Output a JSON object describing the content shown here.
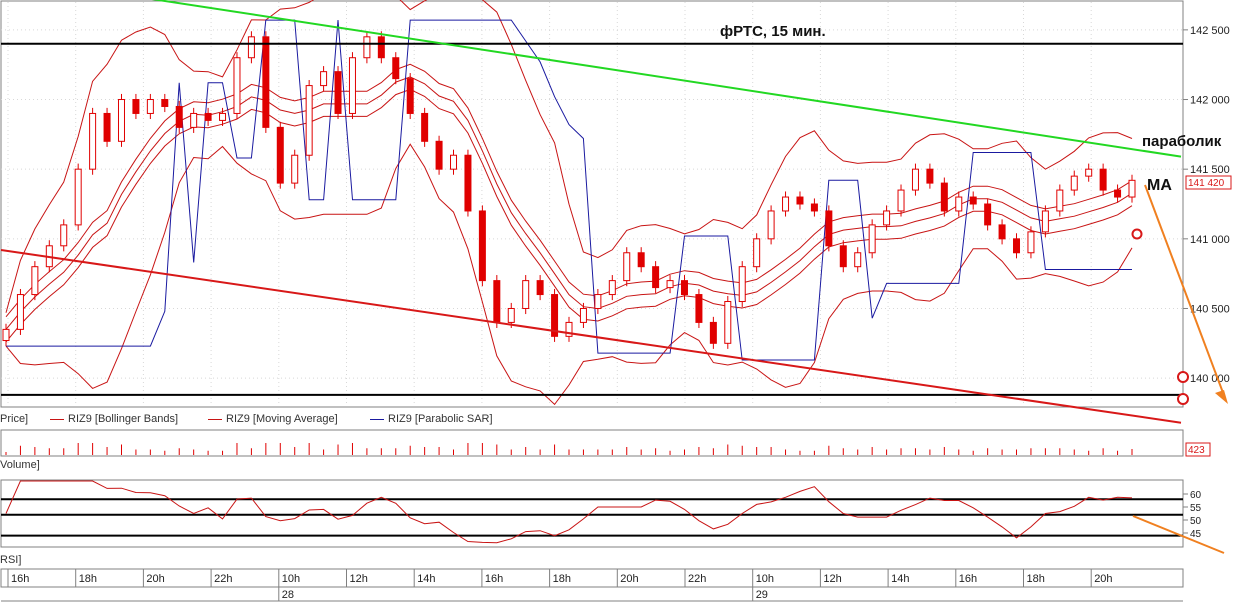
{
  "title": "фРТС,  15 мин.",
  "annotations": {
    "parabolic": "параболик",
    "ma": "MA"
  },
  "price_axis": {
    "ticks": [
      "142 500",
      "142 000",
      "141 500",
      "141 000",
      "140 500",
      "140 000"
    ],
    "last_price": "141 420"
  },
  "legend": {
    "price": "Price]",
    "bollinger": "RIZ9 [Bollinger Bands]",
    "moving_average": "RIZ9 [Moving Average]",
    "parabolic_sar": "RIZ9 [Parabolic SAR]"
  },
  "volume_pane": {
    "label": "Volume]",
    "last_value": "423"
  },
  "rsi_pane": {
    "label": "RSI]",
    "ticks": [
      "60",
      "55",
      "50",
      "45"
    ]
  },
  "time_axis": {
    "hours": [
      "16h",
      "18h",
      "20h",
      "22h",
      "10h",
      "12h",
      "14h",
      "16h",
      "18h",
      "20h",
      "22h",
      "10h",
      "12h",
      "14h",
      "16h",
      "18h",
      "20h"
    ],
    "days": [
      "28",
      "29"
    ]
  },
  "colors": {
    "candle": "#e00000",
    "bollinger": "#c81414",
    "sar": "#1a1aa0",
    "resistance": "#22d822",
    "support": "#d81818",
    "level": "#000000",
    "arrow": "#f08020"
  },
  "chart_data": {
    "type": "candlestick",
    "title": "фРТС,  15 мин.",
    "y_range": [
      139800,
      142700
    ],
    "horizontal_levels": [
      142400,
      139880
    ],
    "resistance_line": {
      "start": 142850,
      "end": 141590
    },
    "support_line": {
      "start": 140920,
      "end": 139680
    },
    "price_close_path": [
      140350,
      140600,
      140800,
      140950,
      141100,
      141500,
      141900,
      141700,
      142000,
      141900,
      142000,
      141950,
      141800,
      141900,
      141850,
      141900,
      142300,
      142450,
      141800,
      141400,
      141600,
      142100,
      142200,
      141900,
      142300,
      142450,
      142300,
      142150,
      141900,
      141700,
      141500,
      141600,
      141200,
      140700,
      140400,
      140500,
      140700,
      140600,
      140300,
      140400,
      140500,
      140600,
      140700,
      140900,
      140800,
      140650,
      140700,
      140600,
      140400,
      140250,
      140550,
      140800,
      141000,
      141200,
      141300,
      141250,
      141200,
      140950,
      140800,
      140900,
      141100,
      141200,
      141350,
      141500,
      141400,
      141200,
      141300,
      141250,
      141100,
      141000,
      140900,
      141050,
      141200,
      141350,
      141450,
      141500,
      141350,
      141300,
      141420
    ],
    "rsi_range": [
      40,
      65
    ],
    "rsi_levels": [
      58,
      52,
      44
    ]
  }
}
